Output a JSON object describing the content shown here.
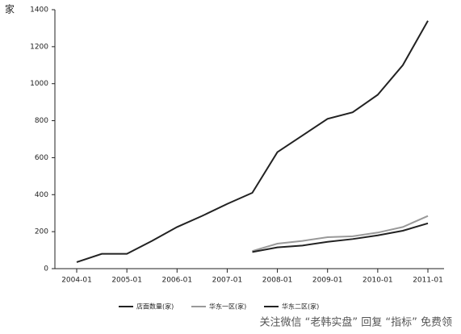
{
  "chart_data": {
    "type": "line",
    "y_unit": "家",
    "categories": [
      "2004-01",
      null,
      "2005-01",
      null,
      "2006-01",
      null,
      "2007-01",
      null,
      "2008-01",
      null,
      "2009-01",
      null,
      "2010-01",
      null,
      "2011-01"
    ],
    "series": [
      {
        "name": "店面数量(家)",
        "color": "#222222",
        "values": [
          35,
          80,
          80,
          150,
          225,
          285,
          350,
          410,
          630,
          720,
          810,
          845,
          940,
          1100,
          1340
        ]
      },
      {
        "name": "华东一区(家)",
        "color": "#999999",
        "values": [
          null,
          null,
          null,
          null,
          null,
          null,
          null,
          95,
          135,
          150,
          170,
          175,
          195,
          225,
          285
        ]
      },
      {
        "name": "华东二区(家)",
        "color": "#222222",
        "values": [
          null,
          null,
          null,
          null,
          null,
          null,
          null,
          90,
          115,
          125,
          145,
          160,
          180,
          205,
          245
        ]
      }
    ],
    "ylim": [
      0,
      1400
    ],
    "yticks": [
      0,
      200,
      400,
      600,
      800,
      1000,
      1200,
      1400
    ],
    "grid": false
  },
  "watermark": "关注微信 “老韩实盘” 回复 “指标” 免费领"
}
